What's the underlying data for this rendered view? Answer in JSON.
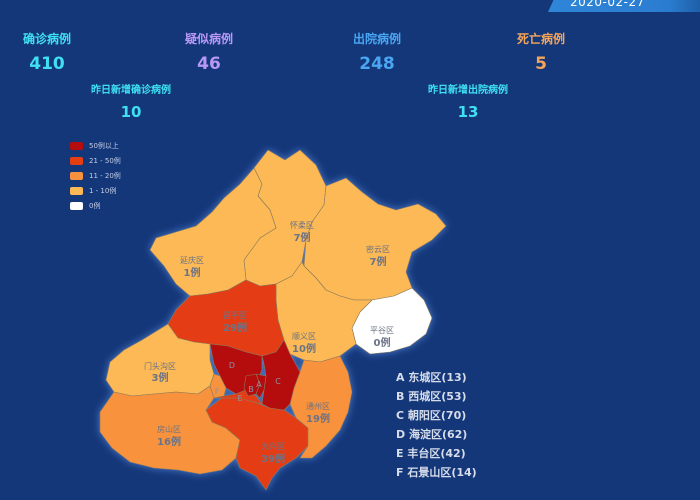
{
  "date": "2020-02-27",
  "stats": {
    "confirmed": {
      "label": "确诊病例",
      "value": "410",
      "color": "#3ee0f2"
    },
    "suspected": {
      "label": "疑似病例",
      "value": "46",
      "color": "#b998f5"
    },
    "discharged": {
      "label": "出院病例",
      "value": "248",
      "color": "#4aa6f2"
    },
    "deaths": {
      "label": "死亡病例",
      "value": "5",
      "color": "#f5a55a"
    },
    "new_confirmed": {
      "label": "昨日新增确诊病例",
      "value": "10",
      "color": "#3ee0f2"
    },
    "new_discharged": {
      "label": "昨日新增出院病例",
      "value": "13",
      "color": "#3ee0f2"
    }
  },
  "legend": [
    {
      "label": "50例以上",
      "color": "#b50d0d"
    },
    {
      "label": "21 - 50例",
      "color": "#e43e12"
    },
    {
      "label": "11 - 20例",
      "color": "#f8923e"
    },
    {
      "label": "1 - 10例",
      "color": "#fcb955"
    },
    {
      "label": "0例",
      "color": "#ffffff"
    }
  ],
  "regions": [
    {
      "name": "怀柔区",
      "value": "7例",
      "level": "1-10"
    },
    {
      "name": "密云区",
      "value": "7例",
      "level": "1-10"
    },
    {
      "name": "延庆区",
      "value": "1例",
      "level": "1-10"
    },
    {
      "name": "昌平区",
      "value": "29例",
      "level": "21-50"
    },
    {
      "name": "顺义区",
      "value": "10例",
      "level": "1-10"
    },
    {
      "name": "平谷区",
      "value": "0例",
      "level": "0"
    },
    {
      "name": "门头沟区",
      "value": "3例",
      "level": "1-10"
    },
    {
      "name": "通州区",
      "value": "19例",
      "level": "11-20"
    },
    {
      "name": "房山区",
      "value": "16例",
      "level": "11-20"
    },
    {
      "name": "大兴区",
      "value": "39例",
      "level": "21-50"
    }
  ],
  "core_markers": [
    "A",
    "B",
    "C",
    "D",
    "E",
    "F"
  ],
  "districts": [
    "A 东城区(13)",
    "B 西城区(53)",
    "C 朝阳区(70)",
    "D 海淀区(62)",
    "E 丰台区(42)",
    "F 石景山区(14)"
  ]
}
